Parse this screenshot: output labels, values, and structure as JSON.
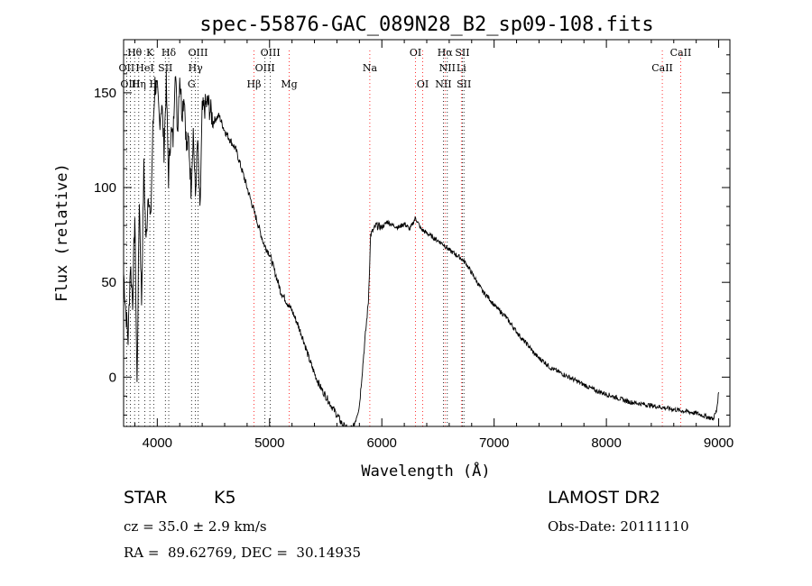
{
  "chart_data": {
    "type": "line",
    "title": "spec-55876-GAC_089N28_B2_sp09-108.fits",
    "xlabel": "Wavelength (Å)",
    "ylabel": "Flux (relative)",
    "xlim": [
      3700,
      9100
    ],
    "ylim": [
      -26,
      178
    ],
    "x_ticks": [
      4000,
      5000,
      6000,
      7000,
      8000,
      9000
    ],
    "y_ticks": [
      0,
      50,
      100,
      150
    ],
    "grid": false,
    "series": [
      {
        "color": "#000000",
        "x": [
          3700,
          3720,
          3740,
          3760,
          3780,
          3800,
          3820,
          3840,
          3860,
          3880,
          3900,
          3920,
          3940,
          3960,
          3980,
          4000,
          4020,
          4040,
          4060,
          4080,
          4100,
          4120,
          4140,
          4160,
          4180,
          4200,
          4220,
          4240,
          4260,
          4280,
          4300,
          4320,
          4340,
          4360,
          4380,
          4400,
          4450,
          4500,
          4550,
          4600,
          4650,
          4700,
          4750,
          4800,
          4850,
          4900,
          4950,
          5000,
          5050,
          5100,
          5150,
          5200,
          5250,
          5300,
          5350,
          5400,
          5450,
          5500,
          5550,
          5600,
          5650,
          5700,
          5750,
          5800,
          5850,
          5880,
          5900,
          5950,
          6000,
          6050,
          6100,
          6150,
          6200,
          6250,
          6300,
          6350,
          6400,
          6450,
          6500,
          6550,
          6600,
          6650,
          6700,
          6750,
          6800,
          6850,
          6900,
          6950,
          7000,
          7050,
          7100,
          7150,
          7200,
          7250,
          7300,
          7350,
          7400,
          7450,
          7500,
          7600,
          7700,
          7800,
          7900,
          8000,
          8100,
          8200,
          8300,
          8400,
          8500,
          8600,
          8700,
          8800,
          8900,
          8950,
          8980,
          9000
        ],
        "y": [
          55,
          35,
          20,
          60,
          40,
          85,
          -5,
          95,
          40,
          110,
          70,
          100,
          80,
          130,
          155,
          150,
          135,
          145,
          120,
          155,
          105,
          130,
          125,
          165,
          130,
          160,
          140,
          150,
          120,
          125,
          100,
          130,
          95,
          125,
          85,
          140,
          145,
          135,
          138,
          130,
          125,
          120,
          110,
          100,
          90,
          80,
          70,
          65,
          55,
          45,
          40,
          35,
          28,
          20,
          10,
          2,
          -5,
          -10,
          -15,
          -20,
          -25,
          -28,
          -26,
          -15,
          20,
          40,
          75,
          80,
          79,
          82,
          80,
          79,
          81,
          78,
          84,
          78,
          76,
          74,
          72,
          70,
          67,
          65,
          63,
          60,
          55,
          50,
          45,
          42,
          38,
          35,
          32,
          28,
          24,
          20,
          17,
          13,
          10,
          8,
          5,
          2,
          -1,
          -4,
          -7,
          -9,
          -11,
          -13,
          -14,
          -15,
          -16,
          -17,
          -18,
          -19,
          -21,
          -22,
          -18,
          -8
        ]
      }
    ],
    "line_markers": [
      {
        "label": "Hθ",
        "wl": 3798,
        "color": "#000000",
        "row": 0
      },
      {
        "label": "K",
        "wl": 3934,
        "color": "#000000",
        "row": 0
      },
      {
        "label": "Hδ",
        "wl": 4102,
        "color": "#000000",
        "row": 0
      },
      {
        "label": "OIII",
        "wl": 4363,
        "color": "#000000",
        "row": 0
      },
      {
        "label": "OIII",
        "wl": 5007,
        "color": "#000000",
        "row": 0
      },
      {
        "label": "OI",
        "wl": 6300,
        "color": "#000000",
        "row": 0
      },
      {
        "label": "Hα",
        "wl": 6563,
        "color": "#000000",
        "row": 0
      },
      {
        "label": "SII",
        "wl": 6717,
        "color": "#000000",
        "row": 0
      },
      {
        "label": "CaII",
        "wl": 8662,
        "color": "#000000",
        "row": 0
      },
      {
        "label": "OII",
        "wl": 3727,
        "color": "#000000",
        "row": 1
      },
      {
        "label": "HeI",
        "wl": 3889,
        "color": "#000000",
        "row": 1
      },
      {
        "label": "SII",
        "wl": 4072,
        "color": "#000000",
        "row": 1
      },
      {
        "label": "Hγ",
        "wl": 4340,
        "color": "#000000",
        "row": 1
      },
      {
        "label": "OIII",
        "wl": 4959,
        "color": "#000000",
        "row": 1
      },
      {
        "label": "Na",
        "wl": 5893,
        "color": "#000000",
        "row": 1
      },
      {
        "label": "NII",
        "wl": 6583,
        "color": "#000000",
        "row": 1
      },
      {
        "label": "Li",
        "wl": 6708,
        "color": "#000000",
        "row": 1
      },
      {
        "label": "CaII",
        "wl": 8498,
        "color": "#000000",
        "row": 1
      },
      {
        "label": "OIII",
        "wl": 3760,
        "color": "#000000",
        "row": 2
      },
      {
        "label": "Hη",
        "wl": 3835,
        "color": "#000000",
        "row": 2
      },
      {
        "label": "H",
        "wl": 3968,
        "color": "#000000",
        "row": 2
      },
      {
        "label": "G",
        "wl": 4305,
        "color": "#000000",
        "row": 2
      },
      {
        "label": "Hβ",
        "wl": 4861,
        "color": "#000000",
        "row": 2
      },
      {
        "label": "Mg",
        "wl": 5175,
        "color": "#000000",
        "row": 2
      },
      {
        "label": "OI",
        "wl": 6364,
        "color": "#000000",
        "row": 2
      },
      {
        "label": "NII",
        "wl": 6548,
        "color": "#000000",
        "row": 2
      },
      {
        "label": "SII",
        "wl": 6731,
        "color": "#000000",
        "row": 2
      }
    ],
    "marker_line_colors": {
      "emission": "#ff0000",
      "absorption": "#000000"
    }
  },
  "info": {
    "class_label": "STAR",
    "subclass": "K5",
    "survey": "LAMOST DR2",
    "cz": "cz = 35.0 ± 2.9 km/s",
    "obs_date": "Obs-Date: 20111110",
    "radec": "RA =  89.62769, DEC =  30.14935"
  }
}
